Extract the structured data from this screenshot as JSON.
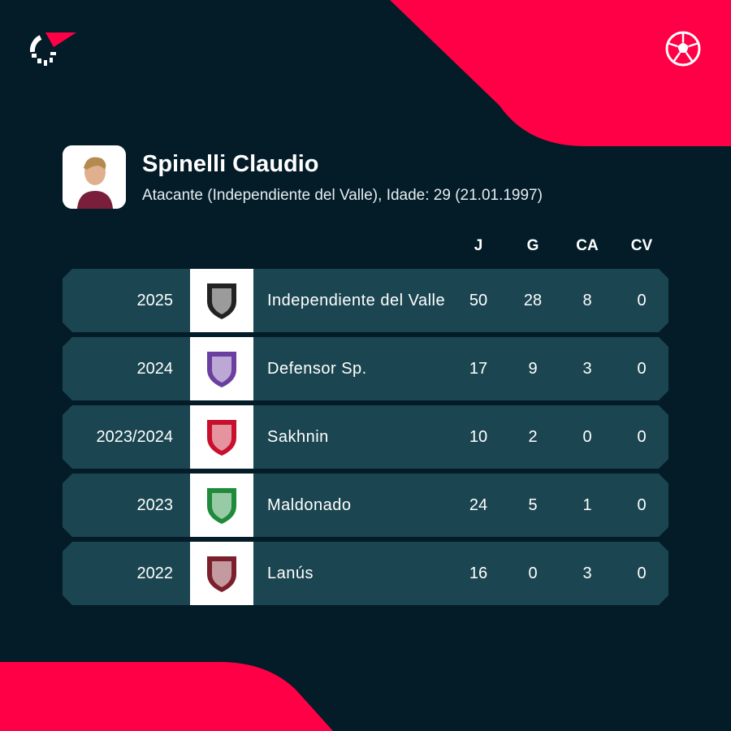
{
  "brand_color": "#ff0046",
  "icons": {
    "logo": "flashscore-logo",
    "sport": "football-icon"
  },
  "player": {
    "name": "Spinelli Claudio",
    "info": "Atacante (Independiente del Valle), Idade: 29 (21.01.1997)"
  },
  "columns": [
    "J",
    "G",
    "CA",
    "CV"
  ],
  "rows": [
    {
      "season": "2025",
      "team": "Independiente del Valle",
      "j": "50",
      "g": "28",
      "ca": "8",
      "cv": "0",
      "crest": "#222222"
    },
    {
      "season": "2024",
      "team": "Defensor Sp.",
      "j": "17",
      "g": "9",
      "ca": "3",
      "cv": "0",
      "crest": "#6a3fa0"
    },
    {
      "season": "2023/2024",
      "team": "Sakhnin",
      "j": "10",
      "g": "2",
      "ca": "0",
      "cv": "0",
      "crest": "#c8102e"
    },
    {
      "season": "2023",
      "team": "Maldonado",
      "j": "24",
      "g": "5",
      "ca": "1",
      "cv": "0",
      "crest": "#1e8a3a"
    },
    {
      "season": "2022",
      "team": "Lanús",
      "j": "16",
      "g": "0",
      "ca": "3",
      "cv": "0",
      "crest": "#7a1f2b"
    }
  ]
}
